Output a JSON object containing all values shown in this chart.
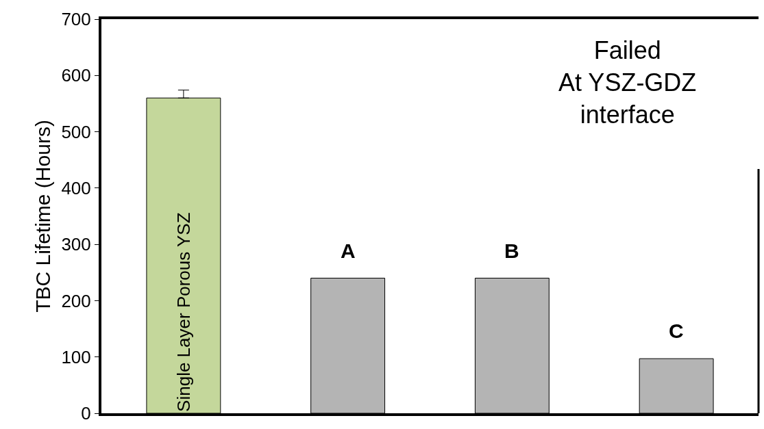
{
  "chart_data": {
    "type": "bar",
    "categories": [
      "Single Layer Porous YSZ",
      "A",
      "B",
      "C"
    ],
    "values": [
      560,
      240,
      240,
      97
    ],
    "errors": [
      14,
      null,
      null,
      null
    ],
    "colors": [
      "#c4d79b",
      "#b4b4b4",
      "#b4b4b4",
      "#b4b4b4"
    ],
    "ylabel": "TBC Lifetime (Hours)",
    "ylim": [
      0,
      700
    ],
    "yticks": [
      0,
      100,
      200,
      300,
      400,
      500,
      600,
      700
    ],
    "tick_labels": "y",
    "annotations": [
      "Failed\nAt YSZ-GDZ\ninterface"
    ]
  }
}
